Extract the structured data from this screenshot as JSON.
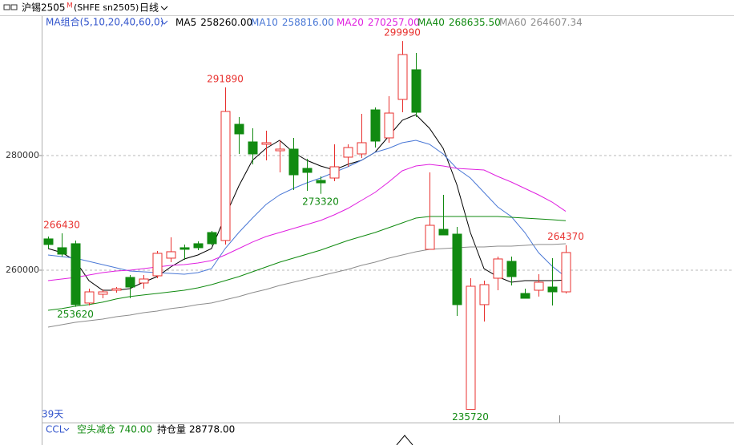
{
  "header": {
    "title": "沪锡2505",
    "title_mark": "M",
    "symbol": "(SHFE sn2505)",
    "period": "日线"
  },
  "chart_data": {
    "type": "candlestick",
    "ma_group": "MA组合(5,10,20,40,60,0)",
    "up_color": "#e8312f",
    "down_color": "#118a11",
    "ylim": [
      233700,
      301960
    ],
    "yticks": [
      280000,
      260000
    ],
    "grid": true,
    "candles": [
      [
        265460,
        265870,
        263780,
        264480
      ],
      [
        263920,
        266430,
        262380,
        262800
      ],
      [
        264620,
        265180,
        253620,
        253990
      ],
      [
        254270,
        256780,
        253850,
        256220
      ],
      [
        255800,
        256640,
        255100,
        256220
      ],
      [
        256500,
        257060,
        256080,
        256780
      ],
      [
        258740,
        259160,
        255100,
        257060
      ],
      [
        257760,
        259160,
        256780,
        258460
      ],
      [
        259020,
        263360,
        258600,
        262940
      ],
      [
        262100,
        265730,
        261400,
        263220
      ],
      [
        263920,
        264480,
        261820,
        263640
      ],
      [
        264620,
        265040,
        263500,
        263920
      ],
      [
        266570,
        266850,
        264340,
        264620
      ],
      [
        265180,
        291890,
        264480,
        287690
      ],
      [
        285450,
        286710,
        280280,
        283780
      ],
      [
        282380,
        284760,
        278460,
        280280
      ],
      [
        281960,
        284340,
        279160,
        282240
      ],
      [
        280840,
        282660,
        277060,
        281120
      ],
      [
        281120,
        283080,
        273990,
        276640
      ],
      [
        277760,
        279440,
        273850,
        277060
      ],
      [
        275660,
        276360,
        273320,
        275240
      ],
      [
        276080,
        281960,
        275520,
        278040
      ],
      [
        279720,
        281960,
        278040,
        281400
      ],
      [
        280280,
        287270,
        279580,
        282240
      ],
      [
        287970,
        288390,
        281400,
        282520
      ],
      [
        283080,
        290350,
        282240,
        287410
      ],
      [
        289790,
        299990,
        287550,
        297620
      ],
      [
        294970,
        297900,
        286710,
        287550
      ],
      [
        263640,
        277060,
        263640,
        267830
      ],
      [
        267130,
        273150,
        266150,
        266150
      ],
      [
        266290,
        267550,
        252030,
        253990
      ],
      [
        235720,
        258600,
        235720,
        257200
      ],
      [
        253990,
        258180,
        251050,
        257480
      ],
      [
        258600,
        262380,
        256500,
        261960
      ],
      [
        261540,
        262380,
        257340,
        258880
      ],
      [
        255940,
        256780,
        255100,
        255100
      ],
      [
        256500,
        259300,
        255390,
        257900
      ],
      [
        257060,
        262100,
        253850,
        256220
      ],
      [
        256220,
        264370,
        255940,
        263080
      ]
    ],
    "series": [
      {
        "name": "MA5",
        "value_label": "258260.00",
        "color": "#000000",
        "values": [
          263780,
          263080,
          261680,
          258180,
          256500,
          256500,
          256780,
          257900,
          258880,
          260560,
          261960,
          262660,
          263780,
          269370,
          274690,
          279160,
          281260,
          282660,
          280560,
          279160,
          278180,
          277480,
          278460,
          279160,
          280560,
          283360,
          286150,
          287130,
          284760,
          281260,
          274970,
          266570,
          260280,
          258880,
          257900,
          258180,
          258180,
          258180,
          258260
        ]
      },
      {
        "name": "MA10",
        "value_label": "258816.00",
        "color": "#4a78d6",
        "values": [
          262660,
          262380,
          262100,
          261540,
          260980,
          260420,
          259860,
          259720,
          259580,
          259440,
          259300,
          259580,
          260280,
          263780,
          266570,
          269090,
          271470,
          273150,
          274270,
          275240,
          276080,
          277060,
          278040,
          279160,
          280560,
          281260,
          282240,
          282660,
          281960,
          280280,
          277760,
          276080,
          273570,
          271050,
          269370,
          266570,
          263080,
          260700,
          258816
        ]
      },
      {
        "name": "MA20",
        "value_label": "270257.00",
        "color": "#e020e0",
        "values": [
          258180,
          258460,
          258740,
          259160,
          259580,
          259860,
          260000,
          260280,
          260560,
          260840,
          260980,
          261260,
          261680,
          262660,
          263780,
          264900,
          265870,
          266570,
          267270,
          267970,
          268670,
          269650,
          270770,
          272170,
          273570,
          275380,
          277340,
          278180,
          278460,
          278180,
          277760,
          277620,
          277480,
          276360,
          275380,
          274270,
          273150,
          271890,
          270257
        ]
      },
      {
        "name": "MA40",
        "value_label": "268635.50",
        "color": "#108a10",
        "values": [
          253010,
          253290,
          253710,
          253990,
          254410,
          254970,
          255390,
          255670,
          255940,
          256220,
          256500,
          256920,
          257480,
          258180,
          258880,
          259720,
          260560,
          261400,
          262100,
          262800,
          263500,
          264340,
          265170,
          265870,
          266570,
          267410,
          268250,
          269090,
          269370,
          269370,
          269370,
          269370,
          269370,
          269370,
          269230,
          269090,
          268950,
          268810,
          268635
        ]
      },
      {
        "name": "MA60",
        "value_label": "264607.34",
        "color": "#8c8c8c",
        "values": [
          250070,
          250490,
          250910,
          251190,
          251470,
          251890,
          252170,
          252590,
          252870,
          253290,
          253570,
          253990,
          254270,
          254830,
          255390,
          256080,
          256640,
          257340,
          257900,
          258460,
          259020,
          259580,
          260140,
          260840,
          261400,
          262100,
          262660,
          263220,
          263640,
          263780,
          263920,
          264060,
          264060,
          264200,
          264200,
          264340,
          264480,
          264480,
          264607
        ]
      }
    ],
    "visible_days": "39天"
  },
  "bottom_panel": {
    "indicator": "CCL",
    "signal": "空头减仓",
    "signal_value": "740.00",
    "open_interest_label": "持仓量",
    "open_interest": "28778.00"
  }
}
